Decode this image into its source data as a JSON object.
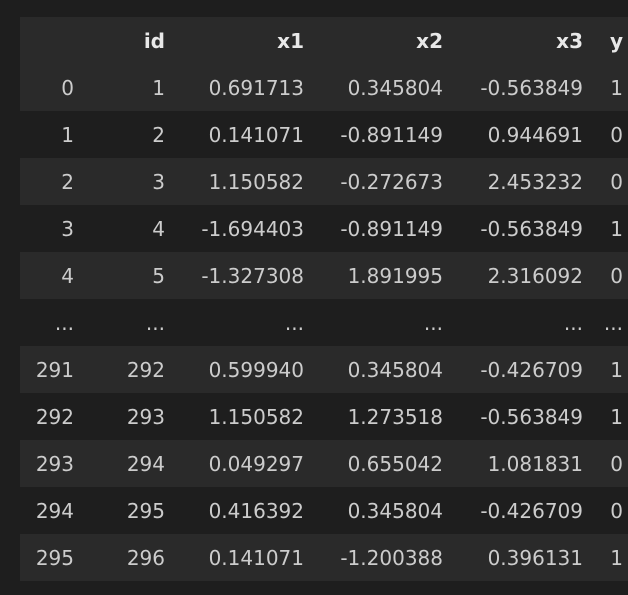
{
  "table": {
    "columns": [
      "",
      "id",
      "x1",
      "x2",
      "x3",
      "y"
    ],
    "rows": [
      [
        "0",
        "1",
        "0.691713",
        "0.345804",
        "-0.563849",
        "1"
      ],
      [
        "1",
        "2",
        "0.141071",
        "-0.891149",
        "0.944691",
        "0"
      ],
      [
        "2",
        "3",
        "1.150582",
        "-0.272673",
        "2.453232",
        "0"
      ],
      [
        "3",
        "4",
        "-1.694403",
        "-0.891149",
        "-0.563849",
        "1"
      ],
      [
        "4",
        "5",
        "-1.327308",
        "1.891995",
        "2.316092",
        "0"
      ],
      [
        "...",
        "...",
        "...",
        "...",
        "...",
        "..."
      ],
      [
        "291",
        "292",
        "0.599940",
        "0.345804",
        "-0.426709",
        "1"
      ],
      [
        "292",
        "293",
        "1.150582",
        "1.273518",
        "-0.563849",
        "1"
      ],
      [
        "293",
        "294",
        "0.049297",
        "0.655042",
        "1.081831",
        "0"
      ],
      [
        "294",
        "295",
        "0.416392",
        "0.345804",
        "-0.426709",
        "0"
      ],
      [
        "295",
        "296",
        "0.141071",
        "-1.200388",
        "0.396131",
        "1"
      ]
    ]
  }
}
